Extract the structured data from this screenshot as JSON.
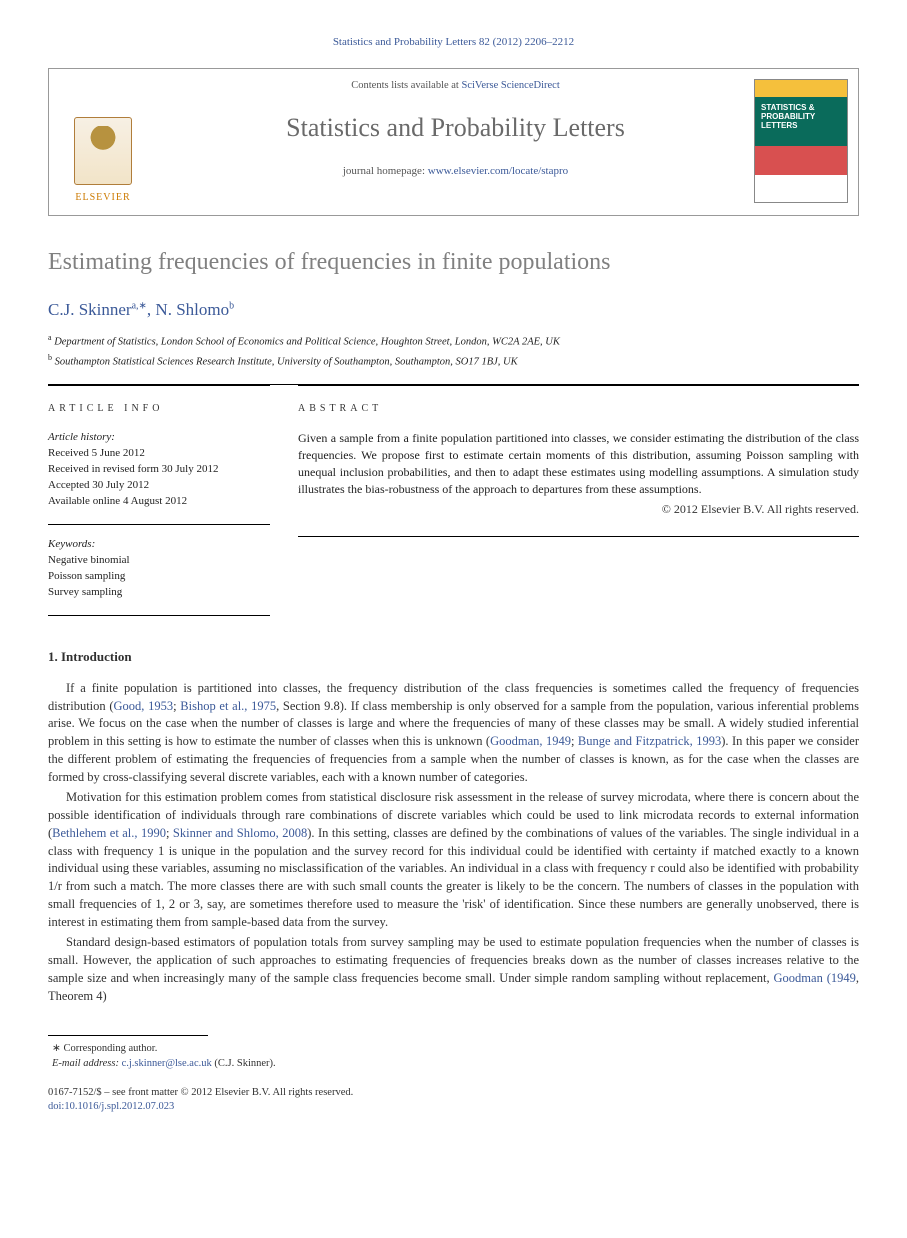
{
  "colors": {
    "link": "#3b5998",
    "title_gray": "#808080",
    "journal_gray": "#6a6a6a",
    "text": "#313131",
    "elsevier_orange": "#cc7a00"
  },
  "header": {
    "citation": "Statistics and Probability Letters 82 (2012) 2206–2212"
  },
  "topbox": {
    "contents_prefix": "Contents lists available at ",
    "contents_link": "SciVerse ScienceDirect",
    "journal_name": "Statistics and Probability Letters",
    "homepage_prefix": "journal homepage: ",
    "homepage_link": "www.elsevier.com/locate/stapro",
    "elsevier_word": "ELSEVIER",
    "cover_title": "STATISTICS & PROBABILITY LETTERS"
  },
  "article": {
    "title": "Estimating frequencies of frequencies in finite populations",
    "authors_html": "C.J. Skinner",
    "author1": "C.J. Skinner",
    "author1_sup": "a,∗",
    "author_sep": ", ",
    "author2": "N. Shlomo",
    "author2_sup": "b"
  },
  "affiliations": {
    "a_sup": "a",
    "a": " Department of Statistics, London School of Economics and Political Science, Houghton Street, London, WC2A 2AE, UK",
    "b_sup": "b",
    "b": " Southampton Statistical Sciences Research Institute, University of Southampton, Southampton, SO17 1BJ, UK"
  },
  "info": {
    "heading": "article info",
    "history_label": "Article history:",
    "received": "Received 5 June 2012",
    "revised": "Received in revised form 30 July 2012",
    "accepted": "Accepted 30 July 2012",
    "online": "Available online 4 August 2012",
    "keywords_label": "Keywords:",
    "kw1": "Negative binomial",
    "kw2": "Poisson sampling",
    "kw3": "Survey sampling"
  },
  "abstract": {
    "heading": "abstract",
    "text": "Given a sample from a finite population partitioned into classes, we consider estimating the distribution of the class frequencies. We propose first to estimate certain moments of this distribution, assuming Poisson sampling with unequal inclusion probabilities, and then to adapt these estimates using modelling assumptions. A simulation study illustrates the bias-robustness of the approach to departures from these assumptions.",
    "copyright": "© 2012 Elsevier B.V. All rights reserved."
  },
  "section1": {
    "heading": "1.  Introduction",
    "p1_a": "If a finite population is partitioned into classes, the frequency distribution of the class frequencies is sometimes called the frequency of frequencies distribution (",
    "p1_link1": "Good, 1953",
    "p1_b": "; ",
    "p1_link2": "Bishop et al., 1975",
    "p1_c": ", Section 9.8). If class membership is only observed for a sample from the population, various inferential problems arise. We focus on the case when the number of classes is large and where the frequencies of many of these classes may be small. A widely studied inferential problem in this setting is how to estimate the number of classes when this is unknown (",
    "p1_link3": "Goodman, 1949",
    "p1_d": "; ",
    "p1_link4": "Bunge and Fitzpatrick, 1993",
    "p1_e": "). In this paper we consider the different problem of estimating the frequencies of frequencies from a sample when the number of classes is known, as for the case when the classes are formed by cross-classifying several discrete variables, each with a known number of categories.",
    "p2_a": "Motivation for this estimation problem comes from statistical disclosure risk assessment in the release of survey microdata, where there is concern about the possible identification of individuals through rare combinations of discrete variables which could be used to link microdata records to external information (",
    "p2_link1": "Bethlehem et al., 1990",
    "p2_b": "; ",
    "p2_link2": "Skinner and Shlomo, 2008",
    "p2_c": "). In this setting, classes are defined by the combinations of values of the variables. The single individual in a class with frequency 1 is unique in the population and the survey record for this individual could be identified with certainty if matched exactly to a known individual using these variables, assuming no misclassification of the variables. An individual in a class with frequency r could also be identified with probability 1/r from such a match. The more classes there are with such small counts the greater is likely to be the concern. The numbers of classes in the population with small frequencies of 1, 2 or 3, say, are sometimes therefore used to measure the 'risk' of identification. Since these numbers are generally unobserved, there is interest in estimating them from sample-based data from the survey.",
    "p3_a": "Standard design-based estimators of population totals from survey sampling may be used to estimate population frequencies when the number of classes is small. However, the application of such approaches to estimating frequencies of frequencies breaks down as the number of classes increases relative to the sample size and when increasingly many of the sample class frequencies become small. Under simple random sampling without replacement, ",
    "p3_link1": "Goodman (1949",
    "p3_b": ", Theorem 4)"
  },
  "footnotes": {
    "corr_marker": "∗",
    "corr_text": " Corresponding author.",
    "email_label": "E-mail address: ",
    "email": "c.j.skinner@lse.ac.uk",
    "email_suffix": " (C.J. Skinner)."
  },
  "bottom": {
    "line1": "0167-7152/$ – see front matter © 2012 Elsevier B.V. All rights reserved.",
    "doi_label": "doi:",
    "doi": "10.1016/j.spl.2012.07.023"
  }
}
